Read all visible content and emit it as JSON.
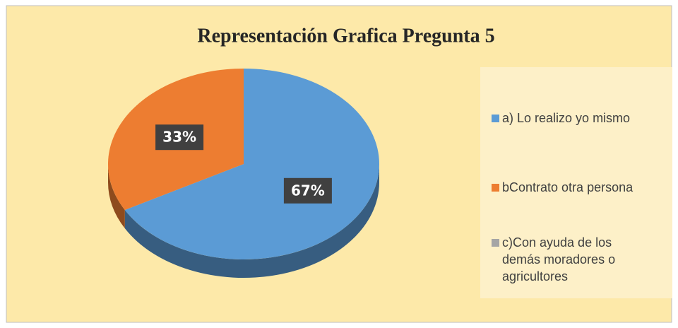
{
  "chart_data": {
    "type": "pie",
    "title": "Representación Grafica Pregunta 5",
    "categories": [
      "a) Lo realizo yo mismo",
      "bContrato otra persona",
      "c)Con ayuda de los demás moradores o agricultores"
    ],
    "values": [
      67,
      33,
      0
    ],
    "value_labels": [
      "67%",
      "33%",
      null
    ],
    "colors": [
      "#5b9bd5",
      "#ed7d31",
      "#a5a5a5"
    ],
    "legend": "right"
  }
}
